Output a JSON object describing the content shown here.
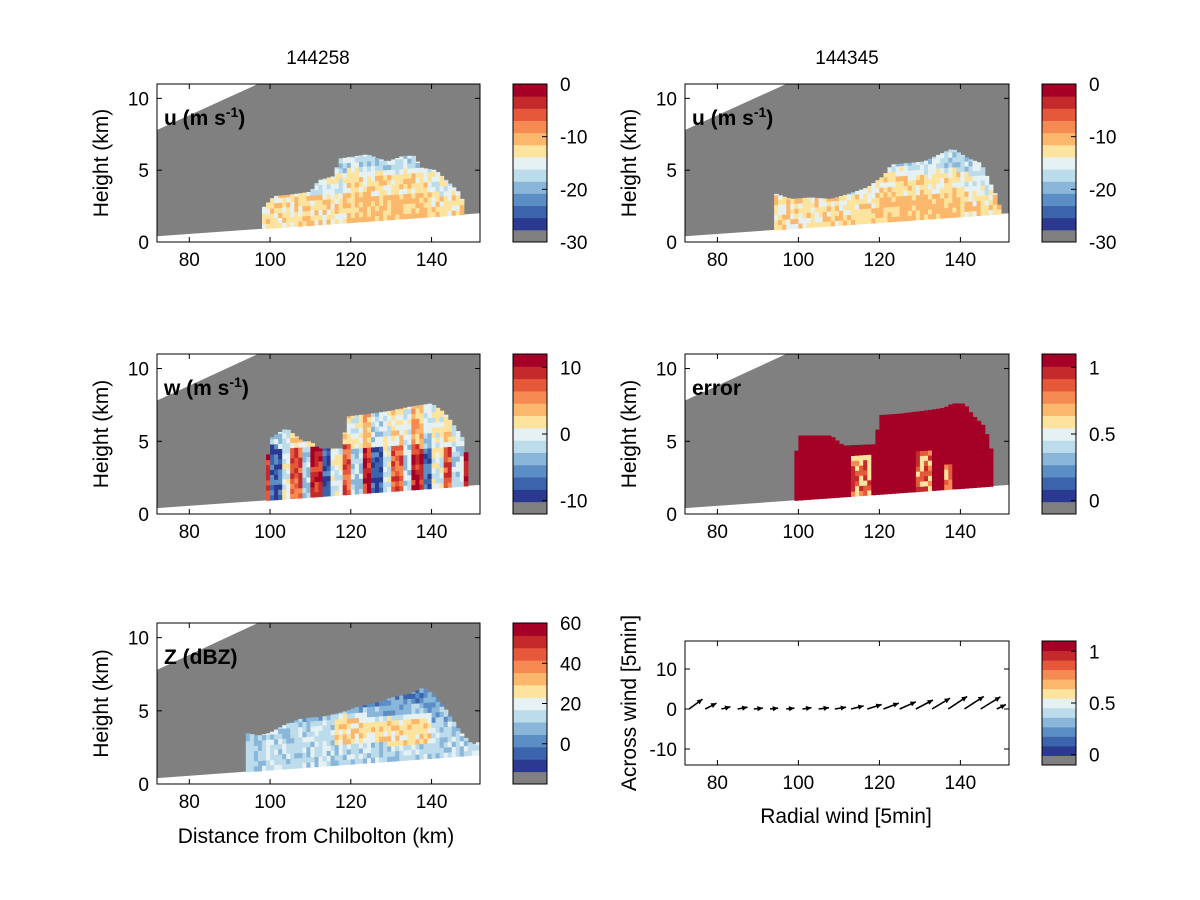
{
  "figure": {
    "col_titles": [
      "144258",
      "144345"
    ],
    "xlabel_left": "Distance from Chilbolton (km)",
    "xlabel_right": "Radial wind [5min]",
    "ylabel_height": "Height (km)",
    "ylabel_across": "Across wind [5min]"
  },
  "colors": {
    "palette": [
      "#2b3990",
      "#3b64ad",
      "#5b8ec4",
      "#8ab7d9",
      "#bcdcec",
      "#e5f1f3",
      "#fde49e",
      "#fbb86c",
      "#f58a53",
      "#e55839",
      "#c42a2c",
      "#a50026"
    ],
    "nodata": "#808080",
    "ground": "#808080"
  },
  "chart_data": [
    {
      "id": "u-144258",
      "type": "heatmap",
      "label": "u (m s",
      "label_sup": "-1",
      "label_tail": ")",
      "xlim": [
        72,
        152
      ],
      "ylim": [
        0,
        11
      ],
      "xticks": [
        80,
        100,
        120,
        140
      ],
      "yticks": [
        0,
        5,
        10
      ],
      "field": "u",
      "echo_top": [
        [
          98,
          2.3
        ],
        [
          101,
          3.2
        ],
        [
          105,
          3.3
        ],
        [
          110,
          3.5
        ],
        [
          112,
          4.3
        ],
        [
          116,
          4.6
        ],
        [
          117,
          5.8
        ],
        [
          124,
          6.1
        ],
        [
          129,
          5.6
        ],
        [
          133,
          6.0
        ],
        [
          136,
          6.0
        ],
        [
          137,
          5.2
        ],
        [
          141,
          5.0
        ],
        [
          144,
          4.2
        ],
        [
          147,
          3.4
        ],
        [
          148,
          2.6
        ]
      ],
      "cbar": {
        "ticks": [
          0,
          -10,
          -20,
          -30
        ],
        "min": -30,
        "max": 0
      }
    },
    {
      "id": "u-144345",
      "type": "heatmap",
      "label": "u (m s",
      "label_sup": "-1",
      "label_tail": ")",
      "xlim": [
        72,
        152
      ],
      "ylim": [
        0,
        11
      ],
      "xticks": [
        80,
        100,
        120,
        140
      ],
      "yticks": [
        0,
        5,
        10
      ],
      "field": "u",
      "echo_top": [
        [
          94,
          3.4
        ],
        [
          98,
          3.0
        ],
        [
          103,
          3.1
        ],
        [
          108,
          3.0
        ],
        [
          113,
          3.4
        ],
        [
          117,
          3.8
        ],
        [
          121,
          4.6
        ],
        [
          123,
          5.4
        ],
        [
          127,
          5.5
        ],
        [
          131,
          5.6
        ],
        [
          134,
          6.0
        ],
        [
          138,
          6.5
        ],
        [
          142,
          5.8
        ],
        [
          145,
          5.5
        ],
        [
          147,
          4.3
        ],
        [
          149,
          3.1
        ],
        [
          150,
          2.1
        ]
      ],
      "cbar": {
        "ticks": [
          0,
          -10,
          -20,
          -30
        ],
        "min": -30,
        "max": 0
      }
    },
    {
      "id": "w-144258",
      "type": "heatmap",
      "label": "w (m s",
      "label_sup": "-1",
      "label_tail": ")",
      "xlim": [
        72,
        152
      ],
      "ylim": [
        0,
        11
      ],
      "xticks": [
        80,
        100,
        120,
        140
      ],
      "yticks": [
        0,
        5,
        10
      ],
      "field": "w",
      "echo_top": [
        [
          99,
          3.0
        ],
        [
          100,
          5.2
        ],
        [
          104,
          5.9
        ],
        [
          108,
          5.0
        ],
        [
          110,
          5.0
        ],
        [
          112,
          4.5
        ],
        [
          118,
          4.5
        ],
        [
          119,
          6.7
        ],
        [
          125,
          6.9
        ],
        [
          130,
          7.1
        ],
        [
          135,
          7.4
        ],
        [
          140,
          7.6
        ],
        [
          143,
          7.0
        ],
        [
          145,
          6.3
        ],
        [
          148,
          5.1
        ],
        [
          149,
          3.4
        ]
      ],
      "cbar": {
        "ticks": [
          10,
          0,
          -10
        ],
        "min": -12,
        "max": 12
      }
    },
    {
      "id": "error-144345",
      "type": "heatmap",
      "label": "error",
      "label_sup": "",
      "label_tail": "",
      "xlim": [
        72,
        152
      ],
      "ylim": [
        0,
        11
      ],
      "xticks": [
        80,
        100,
        120,
        140
      ],
      "yticks": [
        0,
        5,
        10
      ],
      "field": "error",
      "echo_top": [
        [
          99,
          3.3
        ],
        [
          100,
          5.4
        ],
        [
          108,
          5.4
        ],
        [
          111,
          4.7
        ],
        [
          119,
          4.8
        ],
        [
          120,
          6.8
        ],
        [
          125,
          6.9
        ],
        [
          131,
          7.1
        ],
        [
          136,
          7.3
        ],
        [
          138,
          7.6
        ],
        [
          141,
          7.6
        ],
        [
          143,
          6.8
        ],
        [
          146,
          6.0
        ],
        [
          148,
          4.0
        ]
      ],
      "cbar": {
        "ticks": [
          1,
          0.5,
          0
        ],
        "min": -0.1,
        "max": 1.1
      }
    },
    {
      "id": "z-144258",
      "type": "heatmap",
      "label": "Z (dBZ)",
      "label_sup": "",
      "label_tail": "",
      "xlim": [
        72,
        152
      ],
      "ylim": [
        0,
        11
      ],
      "xticks": [
        80,
        100,
        120,
        140
      ],
      "yticks": [
        0,
        5,
        10
      ],
      "field": "z",
      "echo_top": [
        [
          94,
          3.5
        ],
        [
          97,
          3.3
        ],
        [
          100,
          3.5
        ],
        [
          104,
          4.1
        ],
        [
          108,
          4.5
        ],
        [
          113,
          4.6
        ],
        [
          118,
          4.9
        ],
        [
          122,
          5.3
        ],
        [
          127,
          5.6
        ],
        [
          130,
          5.9
        ],
        [
          135,
          6.2
        ],
        [
          138,
          6.6
        ],
        [
          141,
          6.0
        ],
        [
          144,
          4.9
        ],
        [
          147,
          3.6
        ],
        [
          150,
          2.7
        ],
        [
          152,
          2.9
        ]
      ],
      "cbar": {
        "ticks": [
          60,
          40,
          20,
          0
        ],
        "min": -20,
        "max": 60
      }
    },
    {
      "id": "wind-vectors",
      "type": "quiver",
      "xlim": [
        72,
        152
      ],
      "ylim": [
        -14,
        17
      ],
      "xticks": [
        80,
        100,
        120,
        140
      ],
      "yticks": [
        10,
        0,
        -10
      ],
      "x": [
        73,
        77,
        81,
        85,
        89,
        93,
        97,
        101,
        105,
        109,
        113,
        117,
        121,
        125,
        129,
        133,
        137,
        141,
        145,
        149
      ],
      "u": [
        3.0,
        2.5,
        2.0,
        2.2,
        2.0,
        1.8,
        1.8,
        2.0,
        2.3,
        2.5,
        2.8,
        3.2,
        3.4,
        3.6,
        3.8,
        4.0,
        4.2,
        4.3,
        4.4,
        2.0
      ],
      "v": [
        2.2,
        1.3,
        0.5,
        0.4,
        0.2,
        0.2,
        0.2,
        0.3,
        0.3,
        0.4,
        0.7,
        1.0,
        1.3,
        1.6,
        2.0,
        2.4,
        2.8,
        2.8,
        2.7,
        1.0
      ],
      "cbar": {
        "ticks": [
          1,
          0.5,
          0
        ],
        "min": -0.1,
        "max": 1.1
      }
    }
  ]
}
